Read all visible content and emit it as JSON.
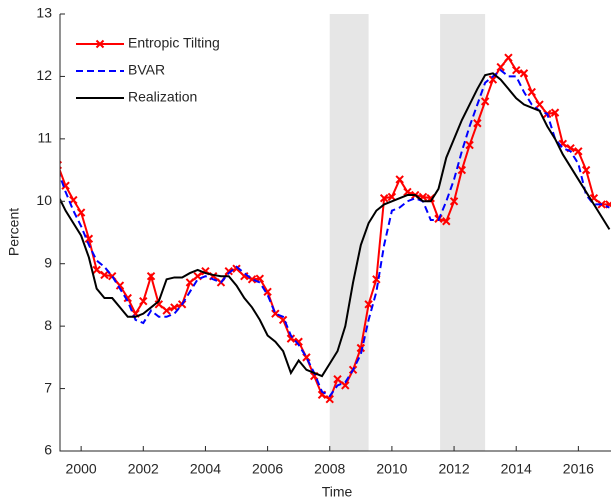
{
  "chart_data": {
    "type": "line",
    "xlabel": "Time",
    "ylabel": "Percent",
    "x": [
      1999.25,
      1999.5,
      1999.75,
      2000,
      2000.25,
      2000.5,
      2000.75,
      2001,
      2001.25,
      2001.5,
      2001.75,
      2002,
      2002.25,
      2002.5,
      2002.75,
      2003,
      2003.25,
      2003.5,
      2003.75,
      2004,
      2004.25,
      2004.5,
      2004.75,
      2005,
      2005.25,
      2005.5,
      2005.75,
      2006,
      2006.25,
      2006.5,
      2006.75,
      2007,
      2007.25,
      2007.5,
      2007.75,
      2008,
      2008.25,
      2008.5,
      2008.75,
      2009,
      2009.25,
      2009.5,
      2009.75,
      2010,
      2010.25,
      2010.5,
      2010.75,
      2011,
      2011.25,
      2011.5,
      2011.75,
      2012,
      2012.25,
      2012.5,
      2012.75,
      2013,
      2013.25,
      2013.5,
      2013.75,
      2014,
      2014.25,
      2014.5,
      2014.75,
      2015,
      2015.25,
      2015.5,
      2015.75,
      2016,
      2016.25,
      2016.5,
      2016.75,
      2017
    ],
    "series": [
      {
        "name": "Entropic Tilting",
        "color": "#ff0000",
        "style": "solid",
        "marker": "x",
        "values": [
          10.58,
          10.25,
          10.02,
          9.82,
          9.4,
          8.9,
          8.82,
          8.8,
          8.65,
          8.45,
          8.2,
          8.4,
          8.8,
          8.35,
          8.25,
          8.3,
          8.35,
          8.7,
          8.8,
          8.88,
          8.8,
          8.7,
          8.88,
          8.92,
          8.8,
          8.75,
          8.76,
          8.55,
          8.2,
          8.1,
          7.8,
          7.75,
          7.5,
          7.2,
          6.9,
          6.83,
          7.15,
          7.05,
          7.3,
          7.65,
          8.35,
          8.75,
          10.05,
          10.07,
          10.35,
          10.15,
          10.1,
          10.07,
          10.05,
          9.72,
          9.68,
          10.0,
          10.5,
          10.9,
          11.25,
          11.6,
          11.95,
          12.15,
          12.3,
          12.1,
          12.05,
          11.75,
          11.55,
          11.4,
          11.42,
          10.92,
          10.85,
          10.8,
          10.5,
          10.05,
          9.95,
          9.95
        ]
      },
      {
        "name": "BVAR",
        "color": "#0000ff",
        "style": "dashed",
        "values": [
          10.5,
          10.15,
          9.85,
          9.6,
          9.3,
          9.05,
          8.95,
          8.8,
          8.6,
          8.4,
          8.1,
          8.05,
          8.25,
          8.15,
          8.15,
          8.2,
          8.35,
          8.55,
          8.75,
          8.8,
          8.75,
          8.7,
          8.85,
          8.95,
          8.85,
          8.75,
          8.7,
          8.5,
          8.2,
          8.15,
          7.85,
          7.7,
          7.5,
          7.25,
          6.95,
          6.88,
          7.05,
          7.1,
          7.3,
          7.55,
          8.1,
          8.55,
          9.3,
          9.85,
          9.9,
          10.0,
          10.05,
          10.0,
          9.7,
          9.7,
          10.0,
          10.35,
          10.8,
          11.2,
          11.55,
          11.9,
          12.0,
          12.1,
          12.0,
          12.0,
          11.75,
          11.55,
          11.45,
          11.4,
          11.0,
          10.85,
          10.8,
          10.6,
          10.1,
          9.95,
          9.95,
          9.9
        ]
      },
      {
        "name": "Realization",
        "color": "#000000",
        "style": "solid",
        "values": [
          10.1,
          9.85,
          9.65,
          9.45,
          9.1,
          8.6,
          8.45,
          8.45,
          8.3,
          8.15,
          8.15,
          8.2,
          8.3,
          8.4,
          8.75,
          8.78,
          8.78,
          8.85,
          8.9,
          8.85,
          8.82,
          8.8,
          8.8,
          8.65,
          8.45,
          8.3,
          8.1,
          7.85,
          7.75,
          7.6,
          7.25,
          7.45,
          7.3,
          7.25,
          7.2,
          7.4,
          7.6,
          8.0,
          8.7,
          9.3,
          9.65,
          9.85,
          9.95,
          10.0,
          10.05,
          10.1,
          10.1,
          10.0,
          10.0,
          10.2,
          10.7,
          11.0,
          11.3,
          11.55,
          11.8,
          12.02,
          12.05,
          11.95,
          11.8,
          11.65,
          11.55,
          11.5,
          11.45,
          11.2,
          11.0,
          10.75,
          10.55,
          10.35,
          10.15,
          9.95,
          9.75,
          9.55
        ]
      }
    ],
    "shaded_regions": [
      [
        2008.0,
        2009.25
      ],
      [
        2011.55,
        2013.0
      ]
    ],
    "shade_color": "#e6e6e6",
    "xlim": [
      1999.32,
      2017.05
    ],
    "ylim": [
      6,
      13
    ],
    "xticks": [
      2000,
      2002,
      2004,
      2006,
      2008,
      2010,
      2012,
      2014,
      2016
    ],
    "yticks": [
      6,
      7,
      8,
      9,
      10,
      11,
      12,
      13
    ],
    "legend": "upper left",
    "grid": false
  }
}
